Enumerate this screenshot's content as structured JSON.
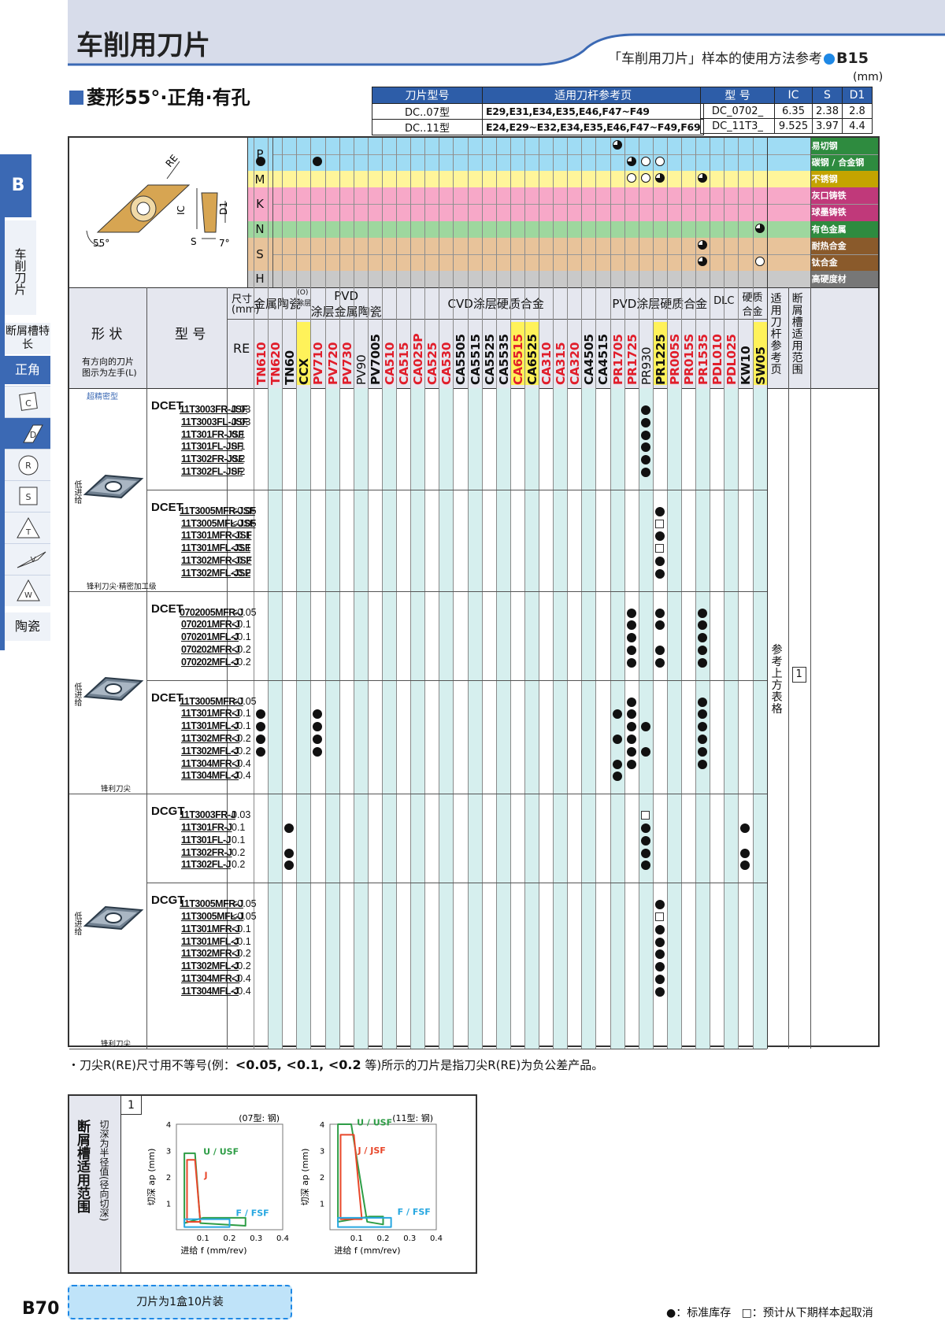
{
  "header": {
    "title": "车削用刀片",
    "ref_text": "「车削用刀片」样本的使用方法参考",
    "ref_page": "B15"
  },
  "side": {
    "tab": "B",
    "category": "车削刀片",
    "feature": "断屑槽特长",
    "active": "正角",
    "ceramics": "陶瓷",
    "shape_tabs": [
      "C",
      "D",
      "R",
      "S",
      "T",
      "V",
      "W"
    ]
  },
  "section": {
    "title": "菱形55°·正角·有孔",
    "unit": "(mm)"
  },
  "holder_table": {
    "headers": [
      "刀片型号",
      "适用刀杆参考页"
    ],
    "rows": [
      [
        "DC..07型",
        "E29,E31,E34,E35,E46,F47~F49"
      ],
      [
        "DC..11型",
        "E24,E29~E32,E34,E35,E46,F47~F49,F69"
      ]
    ]
  },
  "dim_table": {
    "headers": [
      "型 号",
      "IC",
      "S",
      "D1"
    ],
    "rows": [
      [
        "DC_0702_",
        "6.35",
        "2.38",
        "2.8"
      ],
      [
        "DC_11T3_",
        "9.525",
        "3.97",
        "4.4"
      ]
    ]
  },
  "diagram": {
    "labels": [
      "RE",
      "IC",
      "D1",
      "S",
      "7°",
      "55°"
    ]
  },
  "materials": [
    {
      "code": "P",
      "rows": [
        "易切钢",
        "碳钢 / 合金钢"
      ],
      "color": "#9fdcf4"
    },
    {
      "code": "M",
      "rows": [
        "不锈钢"
      ],
      "color": "#fff59a"
    },
    {
      "code": "K",
      "rows": [
        "灰口铸铁",
        "球墨铸铁"
      ],
      "color": "#f7a8c8"
    },
    {
      "code": "N",
      "rows": [
        "有色金属"
      ],
      "color": "#9ed79e"
    },
    {
      "code": "S",
      "rows": [
        "耐热合金",
        "钛合金"
      ],
      "color": "#e8c39a"
    },
    {
      "code": "H",
      "rows": [
        "高硬度材"
      ],
      "color": "#c9c9c9"
    }
  ],
  "table_header": {
    "shape": "形 状",
    "shape_note": "有方向的刀片\n图示为左手(L)",
    "model": "型 号",
    "size": "尺寸\n(mm)",
    "re": "RE",
    "ref_col": "适用刀杆参考页",
    "range_col": "断屑槽适用范围"
  },
  "groups": [
    {
      "label": "金属陶瓷",
      "start": 0,
      "count": 3
    },
    {
      "label": "CCX",
      "start": 3,
      "count": 1,
      "sub": "(O)\n涂层"
    },
    {
      "label": "PVD\n涂层金属陶瓷",
      "start": 4,
      "count": 5
    },
    {
      "label": "CVD涂层硬质合金",
      "start": 9,
      "count": 16
    },
    {
      "label": "PVD涂层硬质合金",
      "start": 25,
      "count": 7
    },
    {
      "label": "DLC",
      "start": 32,
      "count": 2
    },
    {
      "label": "硬质\n合金",
      "start": 34,
      "count": 2
    }
  ],
  "grades": [
    "TN610",
    "TN620",
    "TN60",
    "CCX",
    "PV710",
    "PV720",
    "PV730",
    "PV90",
    "PV7005",
    "CA510",
    "CA515",
    "CA025P",
    "CA525",
    "CA530",
    "CA5505",
    "CA5515",
    "CA5525",
    "CA5535",
    "CA6515",
    "CA6525",
    "CA310",
    "CA315",
    "CA320",
    "CA4505",
    "CA4515",
    "PR1705",
    "PR1725",
    "PR930",
    "PR1225",
    "PR005S",
    "PR015S",
    "PR1535",
    "PDL010",
    "PDL025",
    "KW10",
    "SW05"
  ],
  "blocks": [
    {
      "series": "DCET",
      "sub_label": "超精密型",
      "bottom_label": "锋利刀尖·精密加工级",
      "feed": "低进给",
      "models": [
        "11T3003FR-JSF",
        "11T3003FL-JSF",
        "11T301FR-JSF",
        "11T301FL-JSF",
        "11T302FR-JSF",
        "11T302FL-JSF"
      ],
      "re": [
        "0.03",
        "0.03",
        "0.1",
        "0.1",
        "0.2",
        "0.2"
      ]
    },
    {
      "series": "DCET",
      "models": [
        "11T3005MFR-JSF",
        "11T3005MFL-JSF",
        "11T301MFR-JSF",
        "11T301MFL-JSF",
        "11T302MFR-JSF",
        "11T302MFL-JSF"
      ],
      "re": [
        "<0.05",
        "<0.05",
        "<0.1",
        "<0.1",
        "<0.2",
        "<0.2"
      ]
    },
    {
      "series": "DCET",
      "bottom_label": "锋利刀尖",
      "feed": "低进给",
      "models": [
        "0702005MFR-J",
        "070201MFR-J",
        "070201MFL-J",
        "070202MFR-J",
        "070202MFL-J"
      ],
      "re": [
        "<0.05",
        "<0.1",
        "<0.1",
        "<0.2",
        "<0.2"
      ]
    },
    {
      "series": "DCET",
      "models": [
        "11T3005MFR-J",
        "11T301MFR-J",
        "11T301MFL-J",
        "11T302MFR-J",
        "11T302MFL-J",
        "11T304MFR-J",
        "11T304MFL-J"
      ],
      "re": [
        "<0.05",
        "<0.1",
        "<0.1",
        "<0.2",
        "<0.2",
        "<0.4",
        "<0.4"
      ]
    },
    {
      "series": "DCGT",
      "bottom_label": "锋利刀尖",
      "feed": "低进给",
      "models": [
        "11T3003FR-J",
        "11T301FR-J",
        "11T301FL-J",
        "11T302FR-J",
        "11T302FL-J"
      ],
      "re": [
        "0.03",
        "0.1",
        "0.1",
        "0.2",
        "0.2"
      ]
    },
    {
      "series": "DCGT",
      "models": [
        "11T3005MFR-J",
        "11T3005MFL-J",
        "11T301MFR-J",
        "11T301MFL-J",
        "11T302MFR-J",
        "11T302MFL-J",
        "11T304MFR-J",
        "11T304MFL-J"
      ],
      "re": [
        "<0.05",
        "<0.05",
        "<0.1",
        "<0.1",
        "<0.2",
        "<0.2",
        "<0.4",
        "<0.4"
      ]
    }
  ],
  "ref_text": "参考上方表格",
  "range_no": "1",
  "footnote": {
    "pre": "・刀尖R(RE)尺寸用不等号(例：",
    "bold": "<0.05, <0.1, <0.2",
    "post": " 等)所示的刀片是指刀尖R(RE)为负公差产品。"
  },
  "chart_box": {
    "title": "断屑槽适用范围",
    "sub": "切深为半径值(径向切深)",
    "no": "1"
  },
  "chart_data": [
    {
      "type": "area",
      "title": "(07型: 钢)",
      "xlabel": "进给 f (mm/rev)",
      "ylabel": "切深 ap (mm)",
      "xlim": [
        0,
        0.4
      ],
      "ylim": [
        0,
        4
      ],
      "xticks": [
        "0.1",
        "0.2",
        "0.3",
        "0.4"
      ],
      "yticks": [
        "1",
        "2",
        "3",
        "4"
      ],
      "series": [
        {
          "name": "U / USF",
          "color": "#2e9d46",
          "points": [
            [
              0.03,
              0.25
            ],
            [
              0.03,
              2.9
            ],
            [
              0.07,
              2.9
            ],
            [
              0.09,
              0.25
            ],
            [
              0.26,
              0.15
            ],
            [
              0.26,
              0.45
            ],
            [
              0.1,
              0.45
            ]
          ]
        },
        {
          "name": "J",
          "color": "#e8472a",
          "points": [
            [
              0.04,
              0.3
            ],
            [
              0.04,
              2.65
            ],
            [
              0.07,
              2.65
            ],
            [
              0.09,
              0.3
            ]
          ]
        },
        {
          "name": "F / FSF",
          "color": "#27a7e0",
          "points": [
            [
              0.03,
              0.1
            ],
            [
              0.03,
              0.4
            ],
            [
              0.2,
              0.4
            ],
            [
              0.2,
              0.1
            ]
          ]
        }
      ]
    },
    {
      "type": "area",
      "title": "(11型: 钢)",
      "xlabel": "进给 f (mm/rev)",
      "ylabel": "切深 ap (mm)",
      "xlim": [
        0,
        0.4
      ],
      "ylim": [
        0,
        4
      ],
      "xticks": [
        "0.1",
        "0.2",
        "0.3",
        "0.4"
      ],
      "yticks": [
        "1",
        "2",
        "3",
        "4"
      ],
      "series": [
        {
          "name": "U / USF",
          "color": "#2e9d46",
          "points": [
            [
              0.03,
              0.3
            ],
            [
              0.03,
              4.0
            ],
            [
              0.08,
              4.0
            ],
            [
              0.14,
              0.3
            ],
            [
              0.2,
              0.2
            ],
            [
              0.2,
              0.5
            ],
            [
              0.15,
              0.5
            ]
          ]
        },
        {
          "name": "J / JSF",
          "color": "#e8472a",
          "points": [
            [
              0.04,
              0.4
            ],
            [
              0.04,
              3.6
            ],
            [
              0.09,
              3.6
            ],
            [
              0.12,
              0.4
            ]
          ]
        },
        {
          "name": "F / FSF",
          "color": "#27a7e0",
          "points": [
            [
              0.03,
              0.1
            ],
            [
              0.03,
              0.45
            ],
            [
              0.23,
              0.45
            ],
            [
              0.23,
              0.1
            ]
          ]
        }
      ]
    }
  ],
  "box_note": "刀片为1盒10片装",
  "page_no": "B70",
  "legend": {
    "stock": "●：标准库存",
    "discontinue": "□：预计从下期样本起取消"
  }
}
